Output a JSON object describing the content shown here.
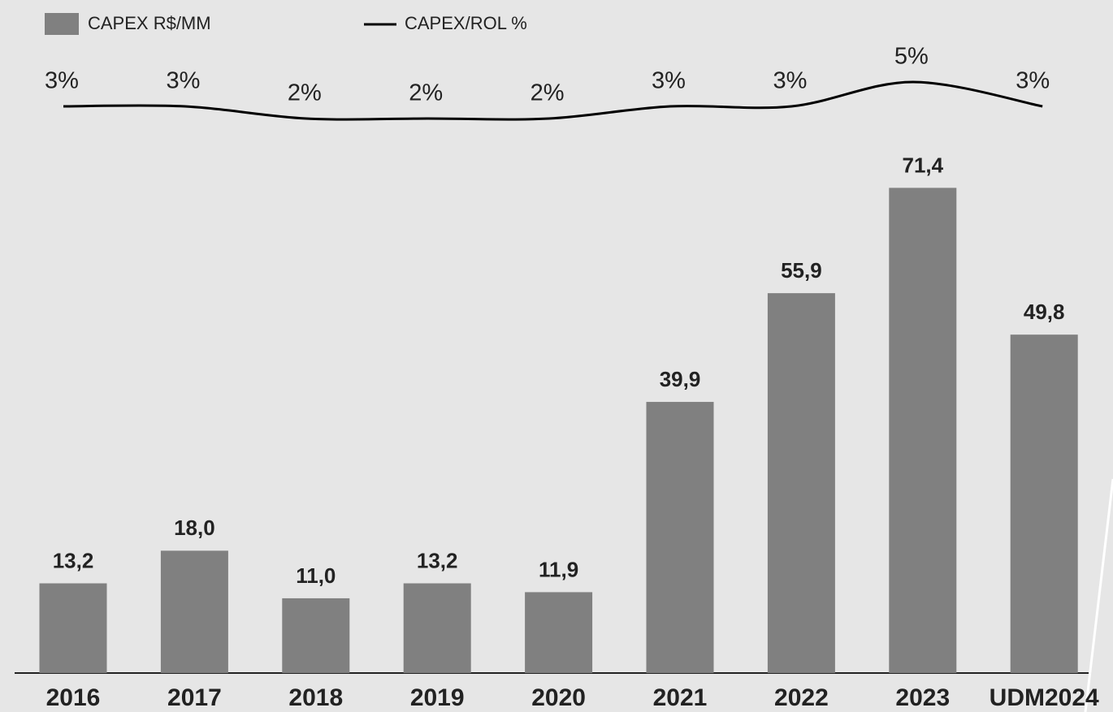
{
  "chart_data": {
    "type": "bar-line",
    "categories": [
      "2016",
      "2017",
      "2018",
      "2019",
      "2020",
      "2021",
      "2022",
      "2023",
      "UDM2024"
    ],
    "series": [
      {
        "name": "CAPEX R$/MM",
        "color": "#808080",
        "type": "bar",
        "values": [
          13.2,
          18.0,
          11.0,
          13.2,
          11.9,
          39.9,
          55.9,
          71.4,
          49.8
        ],
        "value_labels": [
          "13,2",
          "18,0",
          "11,0",
          "13,2",
          "11,9",
          "39,9",
          "55,9",
          "71,4",
          "49,8"
        ]
      },
      {
        "name": "CAPEX/ROL %",
        "color": "#000000",
        "type": "line",
        "values": [
          3,
          3,
          2,
          2,
          2,
          3,
          3,
          5,
          3
        ],
        "value_labels": [
          "3%",
          "3%",
          "2%",
          "2%",
          "2%",
          "3%",
          "3%",
          "5%",
          "3%"
        ]
      }
    ],
    "legend": "top-left"
  }
}
